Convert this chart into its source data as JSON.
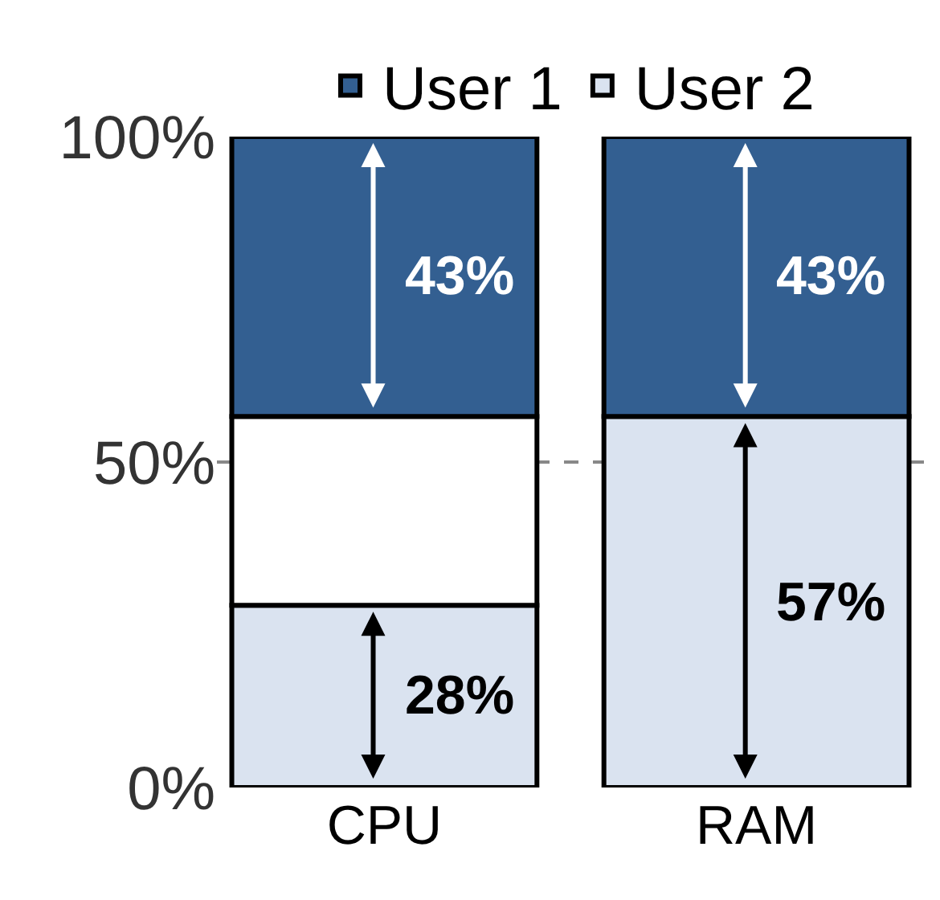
{
  "chart_data": {
    "type": "bar",
    "stacked": true,
    "categories": [
      "CPU",
      "RAM"
    ],
    "series": [
      {
        "name": "User 2",
        "color": "#dae3f0",
        "values": [
          28,
          57
        ],
        "value_labels": [
          "28%",
          "57%"
        ]
      },
      {
        "color": "#ffffff",
        "values": [
          29,
          null
        ]
      },
      {
        "name": "User 1",
        "color": "#335f91",
        "values": [
          43,
          43
        ],
        "value_labels": [
          "43%",
          "43%"
        ]
      }
    ],
    "ylim": [
      0,
      100
    ],
    "yticks": [
      {
        "value": 0,
        "label": "0%"
      },
      {
        "value": 50,
        "label": "50%"
      },
      {
        "value": 100,
        "label": "100%"
      }
    ],
    "grid": "y",
    "legend": "top"
  }
}
